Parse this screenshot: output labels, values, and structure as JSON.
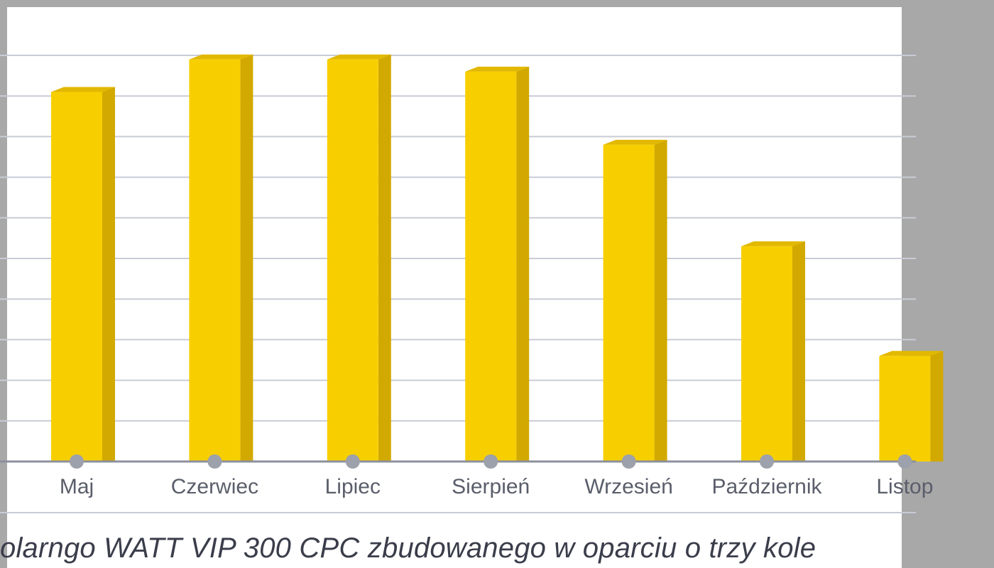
{
  "chart_data": {
    "type": "bar",
    "categories": [
      "Maj",
      "Czerwiec",
      "Lipiec",
      "Sierpień",
      "Wrzesień",
      "Październik",
      "Listop"
    ],
    "values": [
      9.1,
      9.9,
      9.9,
      9.6,
      7.8,
      5.3,
      2.6
    ],
    "ylim": [
      0,
      10
    ],
    "grid": true,
    "colors": {
      "bar_front": "#f7cf00",
      "bar_side": "#d2a900",
      "bar_top": "#e2b800",
      "grid": "#c9ccd6",
      "axis": "#8c909c",
      "tick_dot": "#9da1ab"
    }
  },
  "caption": "olarngo WATT VIP 300 CPC zbudowanego w oparciu o trzy kole"
}
